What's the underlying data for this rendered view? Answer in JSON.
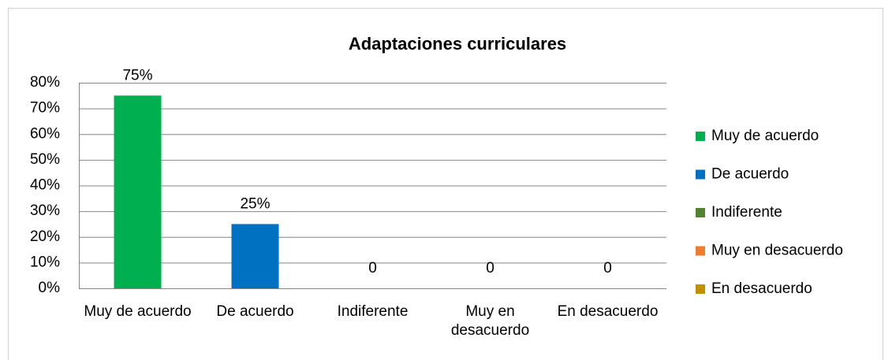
{
  "chart_data": {
    "type": "bar",
    "title": "Adaptaciones curriculares",
    "categories": [
      "Muy de acuerdo",
      "De acuerdo",
      "Indiferente",
      "Muy en desacuerdo",
      "En desacuerdo"
    ],
    "values": [
      75,
      25,
      0,
      0,
      0
    ],
    "value_labels": [
      "75%",
      "25%",
      "0",
      "0",
      "0"
    ],
    "colors": [
      "#00b050",
      "#0070c0",
      "#548235",
      "#ed7d31",
      "#bf9000"
    ],
    "ylim": [
      0,
      80
    ],
    "yticks": [
      {
        "value": 0,
        "label": "0%"
      },
      {
        "value": 10,
        "label": "10%"
      },
      {
        "value": 20,
        "label": "20%"
      },
      {
        "value": 30,
        "label": "30%"
      },
      {
        "value": 40,
        "label": "40%"
      },
      {
        "value": 50,
        "label": "50%"
      },
      {
        "value": 60,
        "label": "60%"
      },
      {
        "value": 70,
        "label": "70%"
      },
      {
        "value": 80,
        "label": "80%"
      }
    ],
    "grid": true,
    "legend": "right"
  }
}
